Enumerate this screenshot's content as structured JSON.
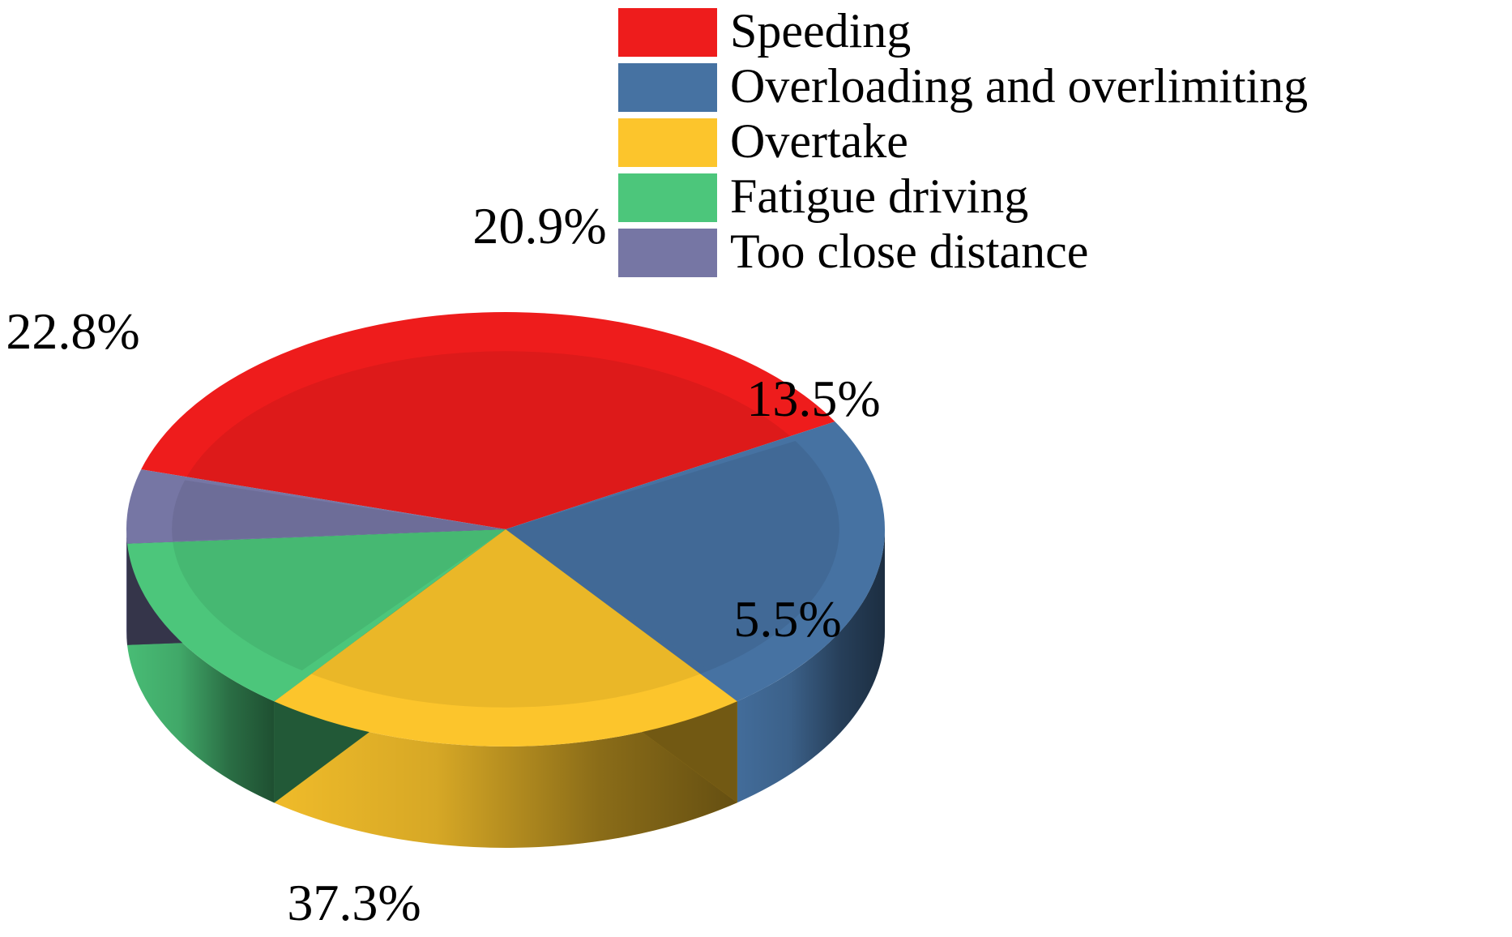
{
  "chart_data": {
    "type": "pie",
    "style": "3d",
    "title": "",
    "legend_position": "top-right",
    "labels": [
      "Speeding",
      "Overloading and overlimiting",
      "Overtake",
      "Fatigue driving",
      "Too close distance"
    ],
    "values": [
      37.3,
      22.8,
      20.9,
      13.5,
      5.5
    ],
    "value_labels": [
      "37.3%",
      "22.8%",
      "20.9%",
      "13.5%",
      "5.5%"
    ],
    "colors": [
      "#EE1C1C",
      "#4672A2",
      "#FCC52C",
      "#4CC67B",
      "#7676A4"
    ]
  }
}
